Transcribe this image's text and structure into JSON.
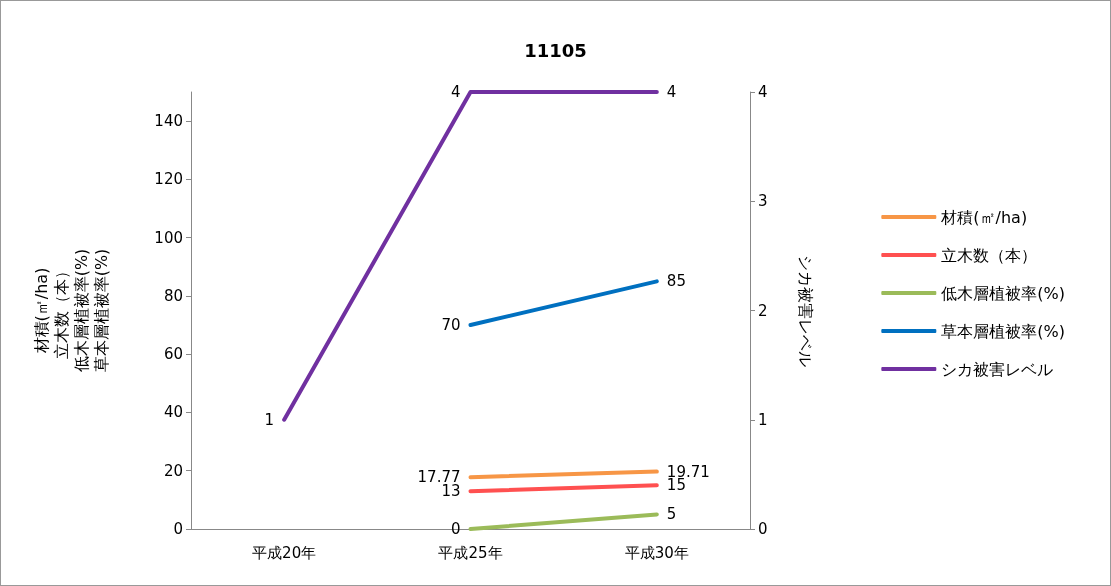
{
  "chart_data": {
    "type": "line",
    "title": "11105",
    "categories": [
      "平成20年",
      "平成25年",
      "平成30年"
    ],
    "ylabel": "材積(㎡/ha)立木数（本）低木層植被率(%)草本層植被率(%)",
    "y2label": "シカ被害レベル",
    "ylim": [
      0,
      150
    ],
    "yticks": [
      0,
      20,
      40,
      60,
      80,
      100,
      120,
      140
    ],
    "y2lim": [
      0,
      4
    ],
    "y2ticks": [
      0,
      1,
      2,
      3,
      4
    ],
    "series": [
      {
        "name": "材積(㎡/ha)",
        "color": "#f79646",
        "values": [
          null,
          17.77,
          19.71
        ]
      },
      {
        "name": "立木数（本）",
        "color": "#ff5050",
        "values": [
          null,
          13,
          15
        ]
      },
      {
        "name": "低木層植被率(%)",
        "color": "#9bbb59",
        "values": [
          null,
          0,
          5
        ]
      },
      {
        "name": "草本層植被率(%)",
        "color": "#0070c0",
        "values": [
          null,
          70,
          85
        ]
      },
      {
        "name": "シカ被害レベル",
        "color": "#7030a0",
        "axis": "y2",
        "values": [
          1,
          4,
          4
        ]
      }
    ],
    "data_labels": true,
    "legend": "right",
    "grid": false,
    "marker": "none",
    "line_style": "solid"
  }
}
